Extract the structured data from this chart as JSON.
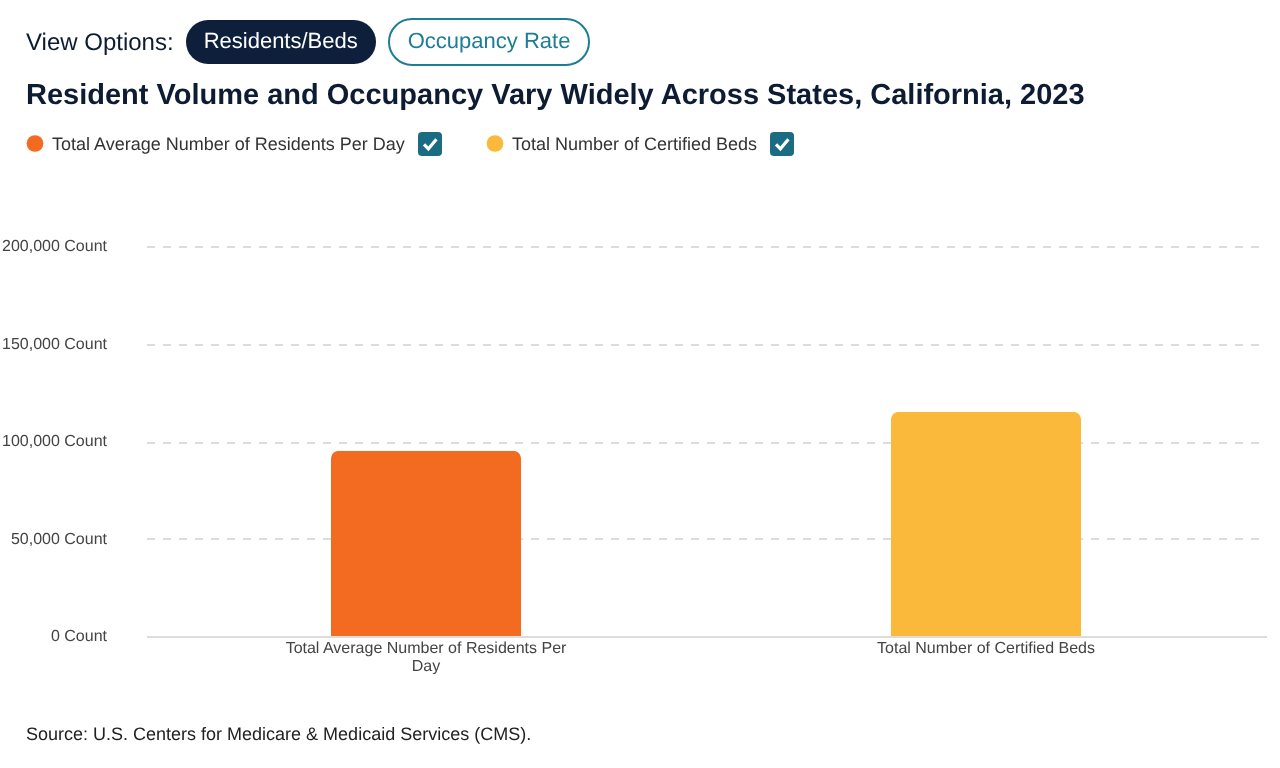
{
  "chart_data": {
    "type": "bar",
    "title": "Resident Volume and Occupancy Vary Widely Across States, California, 2023",
    "categories": [
      "Total Average Number of Residents Per Day",
      "Total Number of Certified Beds"
    ],
    "series": [
      {
        "name": "Total Average Number of Residents Per Day",
        "color": "#f26b21",
        "values": [
          95000,
          null
        ]
      },
      {
        "name": "Total Number of Certified Beds",
        "color": "#fbb93b",
        "values": [
          null,
          115000
        ]
      }
    ],
    "ylim": [
      0,
      200000
    ],
    "yticks": [
      {
        "value": 0,
        "label": "0 Count"
      },
      {
        "value": 50000,
        "label": "50,000 Count"
      },
      {
        "value": 100000,
        "label": "100,000 Count"
      },
      {
        "value": 150000,
        "label": "150,000 Count"
      },
      {
        "value": 200000,
        "label": "200,000 Count"
      }
    ],
    "grid": "y",
    "legend": "top left",
    "annotations": [
      "View Options:",
      "Residents/Beds",
      "Occupancy Rate",
      "Source: U.S. Centers for Medicare & Medicaid Services (CMS)."
    ]
  }
}
